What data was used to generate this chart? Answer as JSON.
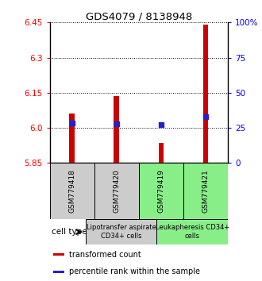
{
  "title": "GDS4079 / 8138948",
  "samples": [
    "GSM779418",
    "GSM779420",
    "GSM779419",
    "GSM779421"
  ],
  "red_values": [
    6.06,
    6.135,
    5.935,
    6.44
  ],
  "blue_values": [
    28.5,
    28.0,
    27.5,
    33.0
  ],
  "y_min": 5.85,
  "y_max": 6.45,
  "y_ticks": [
    5.85,
    6.0,
    6.15,
    6.3,
    6.45
  ],
  "y2_ticks": [
    0,
    25,
    50,
    75,
    100
  ],
  "y2_labels": [
    "0",
    "25",
    "50",
    "75",
    "100%"
  ],
  "bar_color": "#cc0000",
  "blue_color": "#2222cc",
  "group1_label": "Lipotransfer aspirate\nCD34+ cells",
  "group2_label": "Leukapheresis CD34+\ncells",
  "group1_color": "#cccccc",
  "group2_color": "#88ee88",
  "cell_type_label": "cell type",
  "legend_red": "transformed count",
  "legend_blue": "percentile rank within the sample",
  "background_color": "#ffffff",
  "bar_width": 0.12,
  "blue_size": 18
}
